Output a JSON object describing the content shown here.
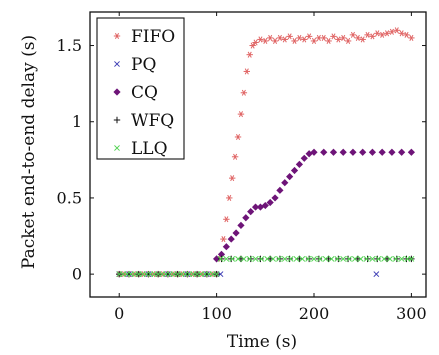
{
  "chart_data": {
    "type": "scatter",
    "title": "",
    "xlabel": "Time (s)",
    "ylabel": "Packet end-to-end delay (s)",
    "xlim": [
      -30,
      315
    ],
    "ylim": [
      -0.15,
      1.72
    ],
    "grid": false,
    "legend_position": "top-left",
    "x_ticks": [
      {
        "value": 0,
        "label": "0"
      },
      {
        "value": 100,
        "label": "100"
      },
      {
        "value": 200,
        "label": "200"
      },
      {
        "value": 300,
        "label": "300"
      }
    ],
    "y_ticks": [
      {
        "value": 0,
        "label": "0"
      },
      {
        "value": 0.5,
        "label": "0.5"
      },
      {
        "value": 1,
        "label": "1"
      },
      {
        "value": 1.5,
        "label": "1.5"
      }
    ],
    "series": [
      {
        "name": "FIFO",
        "marker": "asterisk",
        "color": "#e06464",
        "points": [
          [
            0,
            0
          ],
          [
            5,
            0
          ],
          [
            10,
            0
          ],
          [
            15,
            0
          ],
          [
            20,
            0
          ],
          [
            25,
            0
          ],
          [
            30,
            0
          ],
          [
            35,
            0
          ],
          [
            40,
            0
          ],
          [
            45,
            0
          ],
          [
            50,
            0
          ],
          [
            55,
            0
          ],
          [
            60,
            0
          ],
          [
            65,
            0
          ],
          [
            70,
            0
          ],
          [
            75,
            0
          ],
          [
            80,
            0
          ],
          [
            85,
            0
          ],
          [
            90,
            0
          ],
          [
            95,
            0
          ],
          [
            100,
            0
          ],
          [
            104,
            0.1
          ],
          [
            107,
            0.23
          ],
          [
            110,
            0.36
          ],
          [
            113,
            0.5
          ],
          [
            116,
            0.63
          ],
          [
            119,
            0.77
          ],
          [
            122,
            0.9
          ],
          [
            125,
            1.05
          ],
          [
            128,
            1.19
          ],
          [
            131,
            1.33
          ],
          [
            134,
            1.44
          ],
          [
            137,
            1.5
          ],
          [
            140,
            1.52
          ],
          [
            145,
            1.54
          ],
          [
            150,
            1.53
          ],
          [
            155,
            1.55
          ],
          [
            160,
            1.53
          ],
          [
            165,
            1.55
          ],
          [
            170,
            1.54
          ],
          [
            175,
            1.56
          ],
          [
            180,
            1.53
          ],
          [
            185,
            1.55
          ],
          [
            190,
            1.54
          ],
          [
            195,
            1.56
          ],
          [
            200,
            1.53
          ],
          [
            205,
            1.55
          ],
          [
            210,
            1.55
          ],
          [
            215,
            1.53
          ],
          [
            220,
            1.56
          ],
          [
            225,
            1.54
          ],
          [
            230,
            1.55
          ],
          [
            235,
            1.53
          ],
          [
            240,
            1.57
          ],
          [
            245,
            1.55
          ],
          [
            250,
            1.54
          ],
          [
            255,
            1.57
          ],
          [
            260,
            1.56
          ],
          [
            265,
            1.58
          ],
          [
            270,
            1.57
          ],
          [
            275,
            1.58
          ],
          [
            280,
            1.59
          ],
          [
            285,
            1.6
          ],
          [
            290,
            1.58
          ],
          [
            295,
            1.57
          ],
          [
            300,
            1.55
          ]
        ]
      },
      {
        "name": "PQ",
        "marker": "x",
        "color": "#3c3cb4",
        "points": [
          [
            0,
            0
          ],
          [
            10,
            0
          ],
          [
            20,
            0
          ],
          [
            30,
            0
          ],
          [
            40,
            0
          ],
          [
            50,
            0
          ],
          [
            60,
            0
          ],
          [
            70,
            0
          ],
          [
            80,
            0
          ],
          [
            90,
            0
          ],
          [
            100,
            0
          ],
          [
            104,
            0
          ],
          [
            264,
            0
          ]
        ]
      },
      {
        "name": "CQ",
        "marker": "diamond",
        "color": "#6e1478",
        "points": [
          [
            100,
            0.1
          ],
          [
            105,
            0.13
          ],
          [
            110,
            0.18
          ],
          [
            115,
            0.23
          ],
          [
            120,
            0.27
          ],
          [
            125,
            0.32
          ],
          [
            130,
            0.37
          ],
          [
            135,
            0.41
          ],
          [
            140,
            0.44
          ],
          [
            145,
            0.44
          ],
          [
            150,
            0.45
          ],
          [
            155,
            0.47
          ],
          [
            160,
            0.5
          ],
          [
            165,
            0.55
          ],
          [
            170,
            0.6
          ],
          [
            175,
            0.64
          ],
          [
            180,
            0.68
          ],
          [
            185,
            0.72
          ],
          [
            190,
            0.76
          ],
          [
            195,
            0.79
          ],
          [
            200,
            0.8
          ],
          [
            210,
            0.8
          ],
          [
            220,
            0.8
          ],
          [
            230,
            0.8
          ],
          [
            240,
            0.8
          ],
          [
            250,
            0.8
          ],
          [
            260,
            0.8
          ],
          [
            270,
            0.8
          ],
          [
            280,
            0.8
          ],
          [
            290,
            0.8
          ],
          [
            300,
            0.8
          ]
        ]
      },
      {
        "name": "WFQ",
        "marker": "plus",
        "color": "#111111",
        "points": [
          [
            0,
            0
          ],
          [
            10,
            0
          ],
          [
            20,
            0
          ],
          [
            30,
            0
          ],
          [
            40,
            0
          ],
          [
            50,
            0
          ],
          [
            60,
            0
          ],
          [
            70,
            0
          ],
          [
            80,
            0
          ],
          [
            90,
            0
          ],
          [
            100,
            0
          ],
          [
            105,
            0.1
          ],
          [
            115,
            0.1
          ],
          [
            125,
            0.1
          ],
          [
            135,
            0.1
          ],
          [
            145,
            0.1
          ],
          [
            155,
            0.1
          ],
          [
            165,
            0.1
          ],
          [
            175,
            0.1
          ],
          [
            185,
            0.1
          ],
          [
            195,
            0.1
          ],
          [
            205,
            0.1
          ],
          [
            215,
            0.1
          ],
          [
            225,
            0.1
          ],
          [
            235,
            0.1
          ],
          [
            245,
            0.1
          ],
          [
            255,
            0.1
          ],
          [
            265,
            0.1
          ],
          [
            275,
            0.1
          ],
          [
            285,
            0.1
          ],
          [
            295,
            0.1
          ],
          [
            300,
            0.1
          ]
        ]
      },
      {
        "name": "LLQ",
        "marker": "x",
        "color": "#50d250",
        "points": [
          [
            0,
            0
          ],
          [
            4,
            0
          ],
          [
            8,
            0
          ],
          [
            12,
            0
          ],
          [
            16,
            0
          ],
          [
            20,
            0
          ],
          [
            24,
            0
          ],
          [
            28,
            0
          ],
          [
            32,
            0
          ],
          [
            36,
            0
          ],
          [
            40,
            0
          ],
          [
            44,
            0
          ],
          [
            48,
            0
          ],
          [
            52,
            0
          ],
          [
            56,
            0
          ],
          [
            60,
            0
          ],
          [
            64,
            0
          ],
          [
            68,
            0
          ],
          [
            72,
            0
          ],
          [
            76,
            0
          ],
          [
            80,
            0
          ],
          [
            84,
            0
          ],
          [
            88,
            0
          ],
          [
            92,
            0
          ],
          [
            96,
            0
          ],
          [
            100,
            0
          ],
          [
            104,
            0.1
          ],
          [
            110,
            0.1
          ],
          [
            116,
            0.1
          ],
          [
            122,
            0.1
          ],
          [
            128,
            0.1
          ],
          [
            134,
            0.1
          ],
          [
            140,
            0.1
          ],
          [
            146,
            0.1
          ],
          [
            152,
            0.1
          ],
          [
            158,
            0.1
          ],
          [
            164,
            0.1
          ],
          [
            170,
            0.1
          ],
          [
            176,
            0.1
          ],
          [
            182,
            0.1
          ],
          [
            188,
            0.1
          ],
          [
            194,
            0.1
          ],
          [
            200,
            0.1
          ],
          [
            206,
            0.1
          ],
          [
            212,
            0.1
          ],
          [
            218,
            0.1
          ],
          [
            224,
            0.1
          ],
          [
            230,
            0.1
          ],
          [
            236,
            0.1
          ],
          [
            242,
            0.1
          ],
          [
            248,
            0.1
          ],
          [
            254,
            0.1
          ],
          [
            260,
            0.1
          ],
          [
            266,
            0.1
          ],
          [
            272,
            0.1
          ],
          [
            278,
            0.1
          ],
          [
            284,
            0.1
          ],
          [
            290,
            0.1
          ],
          [
            296,
            0.1
          ],
          [
            300,
            0.1
          ]
        ]
      }
    ]
  }
}
